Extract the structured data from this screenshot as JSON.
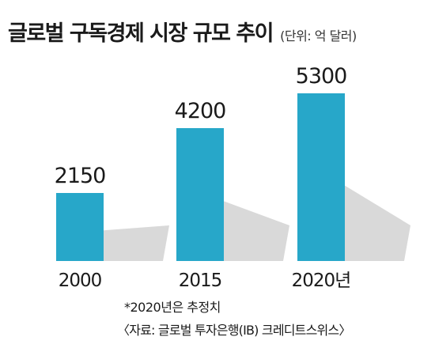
{
  "title": "글로벌 구독경제 시장 규모 추이",
  "unit_note": "(단위: 억 달러)",
  "footnote": "*2020년은 추정치",
  "source": "〈자료: 글로벌 투자은행(IB) 크레디트스위스〉",
  "colors": {
    "bar": "#27a7c9",
    "shadow": "#d9d9d9",
    "text": "#1a1a1a"
  },
  "chart_data": {
    "type": "bar",
    "categories": [
      "2000",
      "2015",
      "2020년"
    ],
    "values": [
      2150,
      4200,
      5300
    ],
    "value_labels": [
      "2150",
      "4200",
      "5300"
    ],
    "title": "글로벌 구독경제 시장 규모 추이",
    "unit": "억 달러",
    "grid": false,
    "legend": "none"
  }
}
